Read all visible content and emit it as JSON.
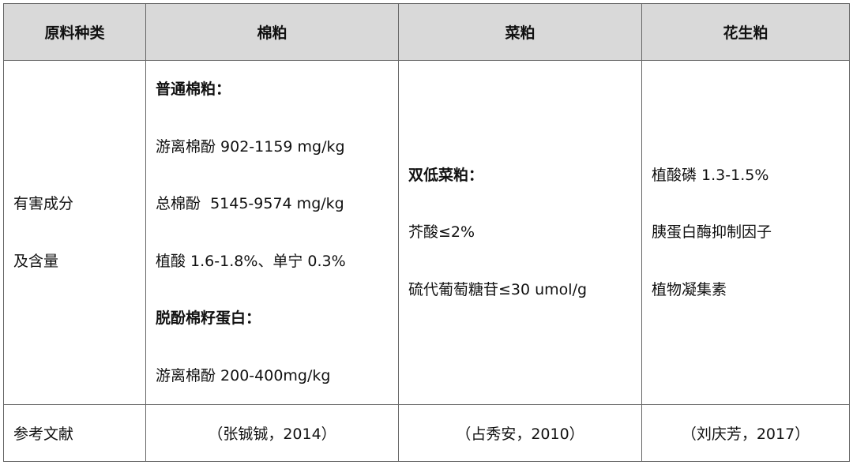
{
  "table": {
    "header": [
      "原料种类",
      "棉粕",
      "菜粕",
      "花生粕"
    ],
    "body": [
      [
        {
          "text": "有害成分",
          "bold": false
        },
        {
          "text": "及含量",
          "bold": false
        }
      ],
      [
        {
          "text": "普通棉粕：",
          "bold": true
        },
        {
          "text": "游离棉酚 902-1159 mg/kg",
          "bold": false
        },
        {
          "text": "总棉酚  5145-9574 mg/kg",
          "bold": false
        },
        {
          "text": "植酸 1.6-1.8%、单宁 0.3%",
          "bold": false
        },
        {
          "text": "脱酚棉籽蛋白：",
          "bold": true
        },
        {
          "text": "游离棉酚 200-400mg/kg",
          "bold": false
        }
      ],
      [
        {
          "text": "双低菜粕：",
          "bold": true
        },
        {
          "text": "芥酸≤2%",
          "bold": false
        },
        {
          "text": "硫代葡萄糖苷≤30 umol/g",
          "bold": false
        }
      ],
      [
        {
          "text": "植酸磷 1.3-1.5%",
          "bold": false
        },
        {
          "text": "胰蛋白酶抑制因子",
          "bold": false
        },
        {
          "text": "植物凝集素",
          "bold": false
        }
      ]
    ],
    "footer": [
      "参考文献",
      "（张铖铖，2014）",
      "（占秀安，2010）",
      "（刘庆芳，2017）"
    ]
  }
}
